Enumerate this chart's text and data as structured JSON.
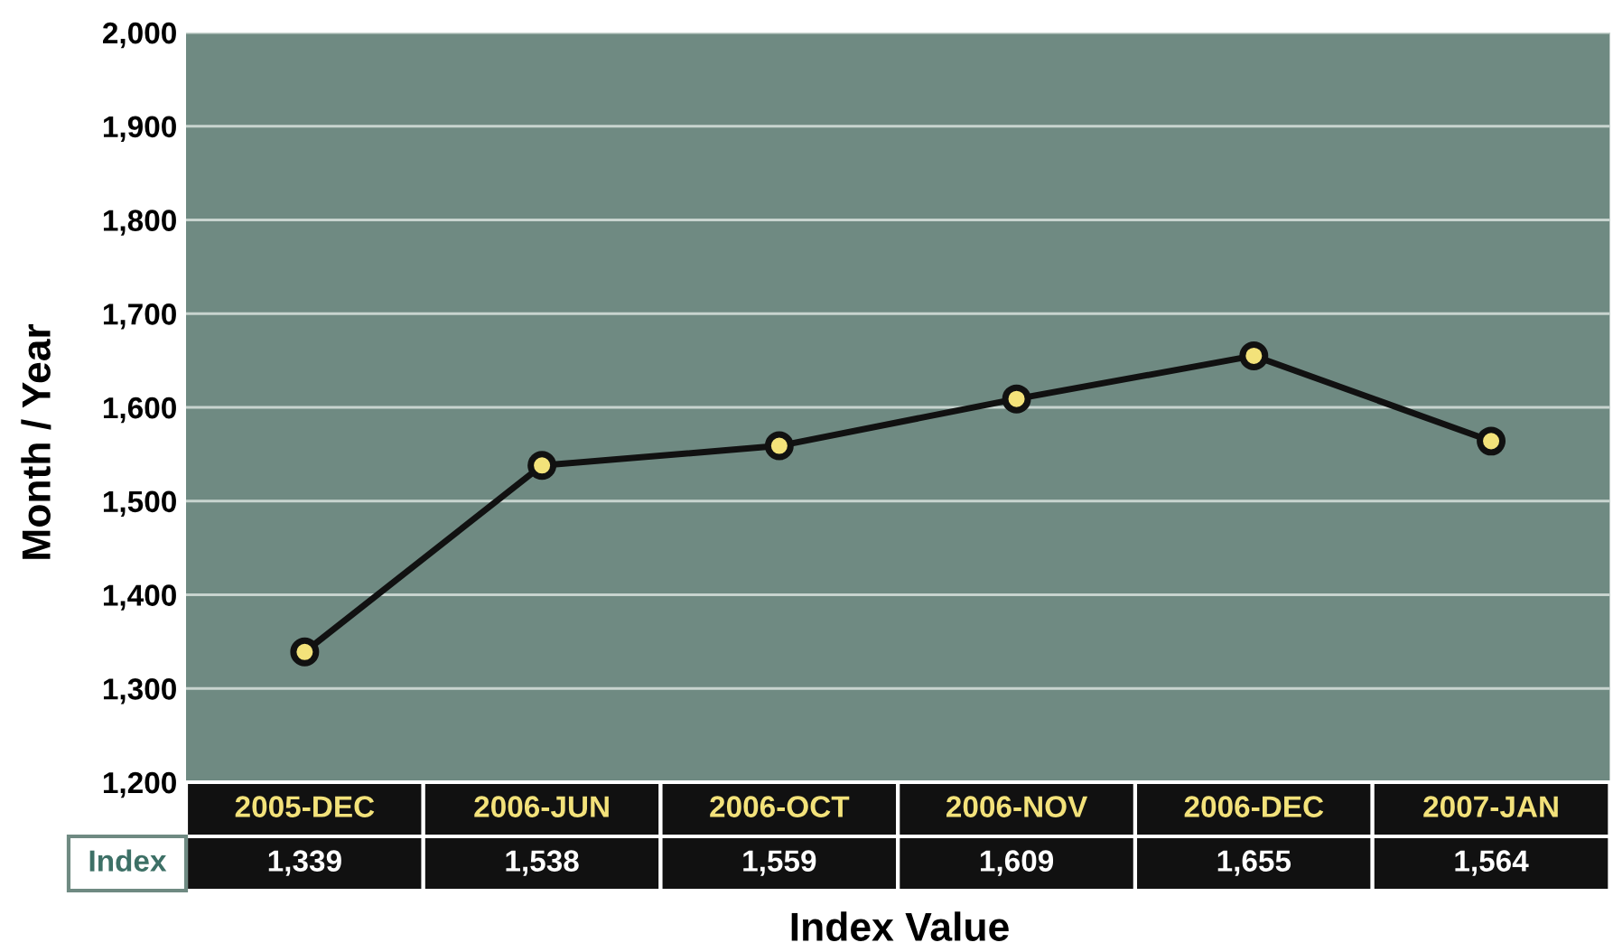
{
  "chart_data": {
    "type": "line",
    "xlabel": "Index Value",
    "ylabel": "Month / Year",
    "categories": [
      "2005-DEC",
      "2006-JUN",
      "2006-OCT",
      "2006-NOV",
      "2006-DEC",
      "2007-JAN"
    ],
    "series": [
      {
        "name": "Index",
        "color": "#111111",
        "values": [
          1339,
          1538,
          1559,
          1609,
          1655,
          1564
        ],
        "value_labels": [
          "1,339",
          "1,538",
          "1,559",
          "1,609",
          "1,655",
          "1,564"
        ]
      }
    ],
    "ylim": [
      1200,
      2000
    ],
    "yticks": [
      {
        "value": 1200,
        "label": "1,200"
      },
      {
        "value": 1300,
        "label": "1,300"
      },
      {
        "value": 1400,
        "label": "1,400"
      },
      {
        "value": 1500,
        "label": "1,500"
      },
      {
        "value": 1600,
        "label": "1,600"
      },
      {
        "value": 1700,
        "label": "1,700"
      },
      {
        "value": 1800,
        "label": "1,800"
      },
      {
        "value": 1900,
        "label": "1,900"
      },
      {
        "value": 2000,
        "label": "2,000"
      }
    ],
    "grid": "y",
    "marker": "circle",
    "line_style": "solid"
  }
}
